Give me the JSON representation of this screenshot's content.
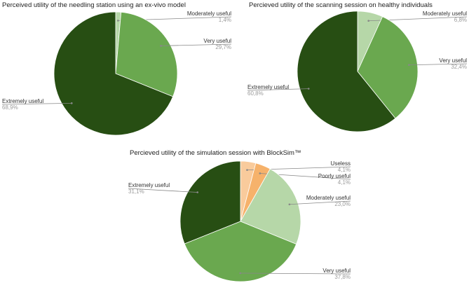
{
  "chart_data": [
    {
      "type": "pie",
      "title": "Perceived utility of the needling station using an ex-vivo model",
      "slices": [
        {
          "label": "Moderately useful",
          "value_label": "1,4%",
          "value": 1.4,
          "color": "#b6d7a8"
        },
        {
          "label": "Very useful",
          "value_label": "29,7%",
          "value": 29.7,
          "color": "#6aa84f"
        },
        {
          "label": "Extremely useful",
          "value_label": "68,9%",
          "value": 68.9,
          "color": "#274e13"
        }
      ]
    },
    {
      "type": "pie",
      "title": "Percieved utility of the scanning session on healthy individuals",
      "slices": [
        {
          "label": "Moderately useful",
          "value_label": "6,8%",
          "value": 6.8,
          "color": "#b6d7a8"
        },
        {
          "label": "Very useful",
          "value_label": "32,4%",
          "value": 32.4,
          "color": "#6aa84f"
        },
        {
          "label": "Extremely useful",
          "value_label": "60,8%",
          "value": 60.8,
          "color": "#274e13"
        }
      ]
    },
    {
      "type": "pie",
      "title": "Percieved utility of the simulation session with BlockSim™",
      "slices": [
        {
          "label": "Useless",
          "value_label": "4,1%",
          "value": 4.1,
          "color": "#f9cb9c"
        },
        {
          "label": "Poorly useful",
          "value_label": "4,1%",
          "value": 4.1,
          "color": "#f6b26b"
        },
        {
          "label": "Moderately useful",
          "value_label": "23,0%",
          "value": 23.0,
          "color": "#b6d7a8"
        },
        {
          "label": "Very useful",
          "value_label": "37,8%",
          "value": 37.8,
          "color": "#6aa84f"
        },
        {
          "label": "Extremely useful",
          "value_label": "31,1%",
          "value": 31.1,
          "color": "#274e13"
        }
      ]
    }
  ]
}
